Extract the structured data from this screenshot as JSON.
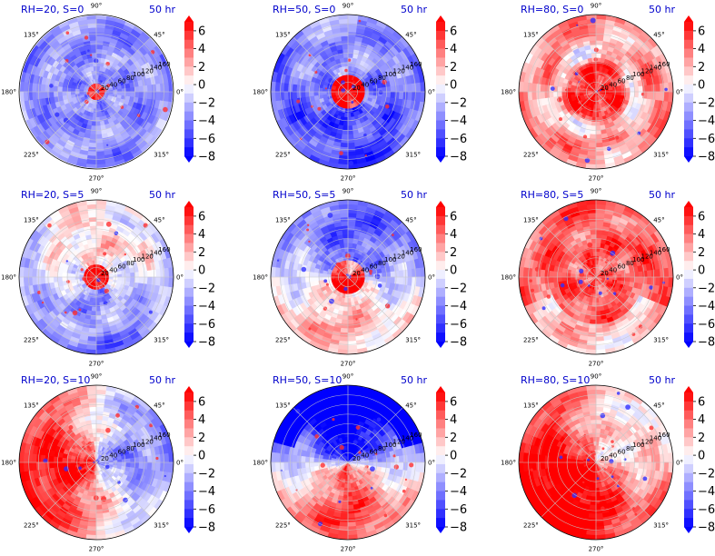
{
  "figure": {
    "time_label": "50 hr",
    "angle_labels": [
      "0°",
      "45°",
      "90°",
      "135°",
      "180°",
      "225°",
      "270°",
      "315°"
    ],
    "radial_ticks": [
      20,
      40,
      60,
      80,
      100,
      120,
      140,
      160
    ],
    "colorbar_ticks": [
      "6",
      "4",
      "2",
      "0",
      "−2",
      "−4",
      "−6",
      "−8"
    ]
  },
  "chart_data": [
    {
      "type": "heatmap",
      "projection": "polar",
      "title": "RH=20, S=0",
      "time": "50 hr",
      "rh": 20,
      "s": 0,
      "color_range": [
        -8,
        7
      ],
      "colormap": "bwr",
      "pattern": "mostly-negative-with-positive-core"
    },
    {
      "type": "heatmap",
      "projection": "polar",
      "title": "RH=50, S=0",
      "time": "50 hr",
      "rh": 50,
      "s": 0,
      "color_range": [
        -8,
        7
      ],
      "colormap": "bwr",
      "pattern": "negative-with-strong-positive-core"
    },
    {
      "type": "heatmap",
      "projection": "polar",
      "title": "RH=80, S=0",
      "time": "50 hr",
      "rh": 80,
      "s": 0,
      "color_range": [
        -8,
        7
      ],
      "colormap": "bwr",
      "pattern": "mostly-positive-with-negative-bands"
    },
    {
      "type": "heatmap",
      "projection": "polar",
      "title": "RH=20, S=5",
      "time": "50 hr",
      "rh": 20,
      "s": 5,
      "color_range": [
        -8,
        7
      ],
      "colormap": "bwr",
      "pattern": "mixed-positive-core-negative-north"
    },
    {
      "type": "heatmap",
      "projection": "polar",
      "title": "RH=50, S=5",
      "time": "50 hr",
      "rh": 50,
      "s": 5,
      "color_range": [
        -8,
        7
      ],
      "colormap": "bwr",
      "pattern": "negative-north-positive-south"
    },
    {
      "type": "heatmap",
      "projection": "polar",
      "title": "RH=80, S=5",
      "time": "50 hr",
      "rh": 80,
      "s": 5,
      "color_range": [
        -8,
        7
      ],
      "colormap": "bwr",
      "pattern": "mostly-positive"
    },
    {
      "type": "heatmap",
      "projection": "polar",
      "title": "RH=20, S=10",
      "time": "50 hr",
      "rh": 20,
      "s": 10,
      "color_range": [
        -8,
        7
      ],
      "colormap": "bwr",
      "pattern": "positive-west-negative-east"
    },
    {
      "type": "heatmap",
      "projection": "polar",
      "title": "RH=50, S=10",
      "time": "50 hr",
      "rh": 50,
      "s": 10,
      "color_range": [
        -8,
        7
      ],
      "colormap": "bwr",
      "pattern": "strong-negative-north-positive-south"
    },
    {
      "type": "heatmap",
      "projection": "polar",
      "title": "RH=80, S=10",
      "time": "50 hr",
      "rh": 80,
      "s": 10,
      "color_range": [
        -8,
        7
      ],
      "colormap": "bwr",
      "pattern": "strong-positive-south-west"
    }
  ]
}
